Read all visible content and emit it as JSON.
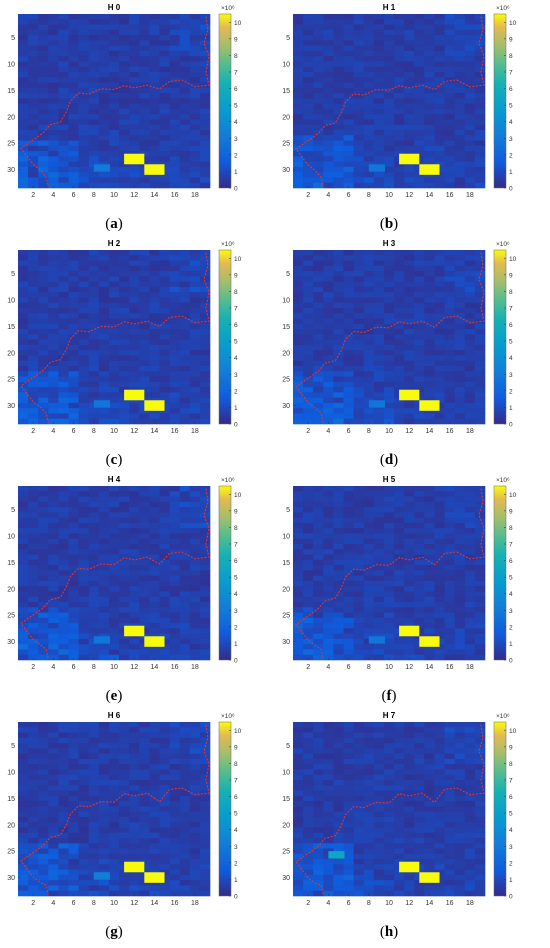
{
  "chart_data": [
    {
      "type": "heatmap",
      "title": "H 0",
      "caption_letter": "a",
      "xticks": [
        2,
        4,
        6,
        8,
        10,
        12,
        14,
        16,
        18
      ],
      "yticks": [
        5,
        10,
        15,
        20,
        25,
        30
      ],
      "colorbar_ticks": [
        0,
        1,
        2,
        3,
        4,
        5,
        6,
        7,
        8,
        9,
        10
      ],
      "colorbar_exponent": "×10⁶",
      "colorbar_range": [
        0,
        10.5
      ],
      "grid": [
        19,
        33
      ],
      "hotspots": [
        {
          "x": 11,
          "y": 27,
          "w": 2,
          "h": 2,
          "value": 10.5
        },
        {
          "x": 13,
          "y": 29,
          "w": 2,
          "h": 2,
          "value": 10.5
        }
      ],
      "cyan_cells": [
        {
          "x": 8,
          "y": 29,
          "value": 3.0
        }
      ]
    },
    {
      "type": "heatmap",
      "title": "H 1",
      "caption_letter": "b",
      "xticks": [
        2,
        4,
        6,
        8,
        10,
        12,
        14,
        16,
        18
      ],
      "yticks": [
        5,
        10,
        15,
        20,
        25,
        30
      ],
      "colorbar_ticks": [
        0,
        1,
        2,
        3,
        4,
        5,
        6,
        7,
        8,
        9,
        10
      ],
      "colorbar_exponent": "×10⁶",
      "colorbar_range": [
        0,
        10.5
      ],
      "grid": [
        19,
        33
      ],
      "hotspots": [
        {
          "x": 11,
          "y": 27,
          "w": 2,
          "h": 2,
          "value": 10.5
        },
        {
          "x": 13,
          "y": 29,
          "w": 2,
          "h": 2,
          "value": 10.5
        }
      ],
      "cyan_cells": [
        {
          "x": 8,
          "y": 29,
          "value": 2.8
        }
      ]
    },
    {
      "type": "heatmap",
      "title": "H 2",
      "caption_letter": "c",
      "xticks": [
        2,
        4,
        6,
        8,
        10,
        12,
        14,
        16,
        18
      ],
      "yticks": [
        5,
        10,
        15,
        20,
        25,
        30
      ],
      "colorbar_ticks": [
        0,
        1,
        2,
        3,
        4,
        5,
        6,
        7,
        8,
        9,
        10
      ],
      "colorbar_exponent": "×10⁶",
      "colorbar_range": [
        0,
        10.5
      ],
      "grid": [
        19,
        33
      ],
      "hotspots": [
        {
          "x": 11,
          "y": 27,
          "w": 2,
          "h": 2,
          "value": 10.5
        },
        {
          "x": 13,
          "y": 29,
          "w": 2,
          "h": 2,
          "value": 10.5
        }
      ],
      "cyan_cells": [
        {
          "x": 8,
          "y": 29,
          "value": 2.8
        }
      ]
    },
    {
      "type": "heatmap",
      "title": "H 3",
      "caption_letter": "d",
      "xticks": [
        2,
        4,
        6,
        8,
        10,
        12,
        14,
        16,
        18
      ],
      "yticks": [
        5,
        10,
        15,
        20,
        25,
        30
      ],
      "colorbar_ticks": [
        0,
        1,
        2,
        3,
        4,
        5,
        6,
        7,
        8,
        9,
        10
      ],
      "colorbar_exponent": "×10⁶",
      "colorbar_range": [
        0,
        10.5
      ],
      "grid": [
        19,
        33
      ],
      "hotspots": [
        {
          "x": 11,
          "y": 27,
          "w": 2,
          "h": 2,
          "value": 10.5
        },
        {
          "x": 13,
          "y": 29,
          "w": 2,
          "h": 2,
          "value": 10.5
        }
      ],
      "cyan_cells": [
        {
          "x": 8,
          "y": 29,
          "value": 2.8
        }
      ]
    },
    {
      "type": "heatmap",
      "title": "H 4",
      "caption_letter": "e",
      "xticks": [
        2,
        4,
        6,
        8,
        10,
        12,
        14,
        16,
        18
      ],
      "yticks": [
        5,
        10,
        15,
        20,
        25,
        30
      ],
      "colorbar_ticks": [
        0,
        1,
        2,
        3,
        4,
        5,
        6,
        7,
        8,
        9,
        10
      ],
      "colorbar_exponent": "×10⁶",
      "colorbar_range": [
        0,
        10.5
      ],
      "grid": [
        19,
        33
      ],
      "hotspots": [
        {
          "x": 11,
          "y": 27,
          "w": 2,
          "h": 2,
          "value": 10.5
        },
        {
          "x": 13,
          "y": 29,
          "w": 2,
          "h": 2,
          "value": 10.5
        }
      ],
      "cyan_cells": [
        {
          "x": 8,
          "y": 29,
          "value": 2.8
        }
      ]
    },
    {
      "type": "heatmap",
      "title": "H 5",
      "caption_letter": "f",
      "xticks": [
        2,
        4,
        6,
        8,
        10,
        12,
        14,
        16,
        18
      ],
      "yticks": [
        5,
        10,
        15,
        20,
        25,
        30
      ],
      "colorbar_ticks": [
        0,
        1,
        2,
        3,
        4,
        5,
        6,
        7,
        8,
        9,
        10
      ],
      "colorbar_exponent": "×10⁶",
      "colorbar_range": [
        0,
        10.5
      ],
      "grid": [
        19,
        33
      ],
      "hotspots": [
        {
          "x": 11,
          "y": 27,
          "w": 2,
          "h": 2,
          "value": 10.5
        },
        {
          "x": 13,
          "y": 29,
          "w": 2,
          "h": 2,
          "value": 10.5
        }
      ],
      "cyan_cells": [
        {
          "x": 8,
          "y": 29,
          "value": 2.8
        }
      ]
    },
    {
      "type": "heatmap",
      "title": "H 6",
      "caption_letter": "g",
      "xticks": [
        2,
        4,
        6,
        8,
        10,
        12,
        14,
        16,
        18
      ],
      "yticks": [
        5,
        10,
        15,
        20,
        25,
        30
      ],
      "colorbar_ticks": [
        0,
        1,
        2,
        3,
        4,
        5,
        6,
        7,
        8,
        9,
        10
      ],
      "colorbar_exponent": "×10⁶",
      "colorbar_range": [
        0,
        10.5
      ],
      "grid": [
        19,
        33
      ],
      "hotspots": [
        {
          "x": 11,
          "y": 27,
          "w": 2,
          "h": 2,
          "value": 10.5
        },
        {
          "x": 13,
          "y": 29,
          "w": 2,
          "h": 2,
          "value": 10.5
        }
      ],
      "cyan_cells": [
        {
          "x": 8,
          "y": 29,
          "value": 3.2
        }
      ]
    },
    {
      "type": "heatmap",
      "title": "H 7",
      "caption_letter": "h",
      "xticks": [
        2,
        4,
        6,
        8,
        10,
        12,
        14,
        16,
        18
      ],
      "yticks": [
        5,
        10,
        15,
        20,
        25,
        30
      ],
      "colorbar_ticks": [
        0,
        1,
        2,
        3,
        4,
        5,
        6,
        7,
        8,
        9,
        10
      ],
      "colorbar_exponent": "×10⁶",
      "colorbar_range": [
        0,
        10.5
      ],
      "grid": [
        19,
        33
      ],
      "hotspots": [
        {
          "x": 11,
          "y": 27,
          "w": 2,
          "h": 2,
          "value": 10.5
        },
        {
          "x": 13,
          "y": 29,
          "w": 2,
          "h": 2,
          "value": 10.5
        }
      ],
      "cyan_cells": [
        {
          "x": 4,
          "y": 25,
          "value": 5.5
        }
      ]
    }
  ],
  "colors": {
    "base": "#3a2fa8",
    "cell_light": "#4a3fd0",
    "cell_mid": "#3f4ee0",
    "cyan": "#2aa7e6",
    "hotspot": "#f9fb0e",
    "contour": "#e3342f"
  }
}
